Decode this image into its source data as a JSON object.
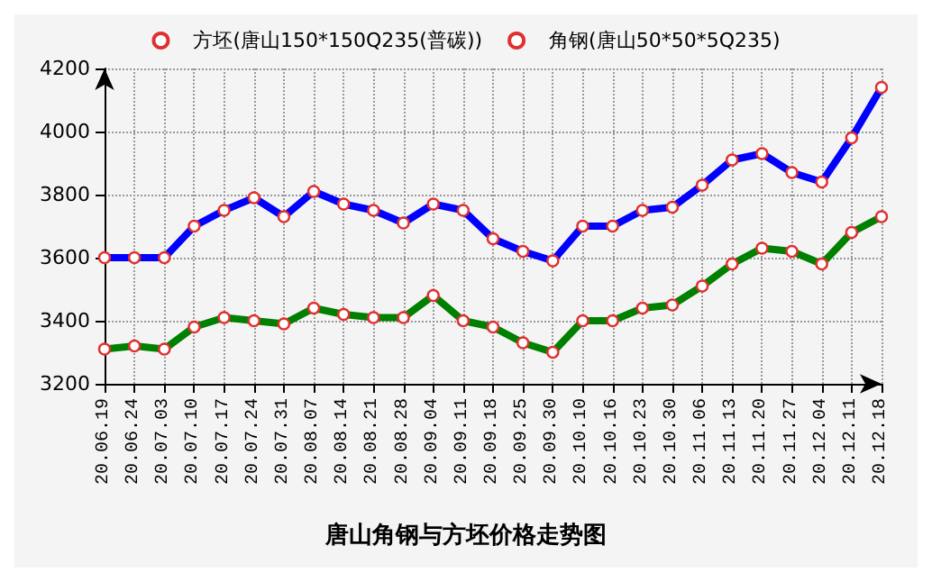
{
  "chart_data": {
    "type": "line",
    "title": "唐山角钢与方坯价格走势图",
    "categories": [
      "20.06.19",
      "20.06.24",
      "20.07.03",
      "20.07.10",
      "20.07.17",
      "20.07.24",
      "20.07.31",
      "20.08.07",
      "20.08.14",
      "20.08.21",
      "20.08.28",
      "20.09.04",
      "20.09.11",
      "20.09.18",
      "20.09.25",
      "20.09.30",
      "20.10.10",
      "20.10.16",
      "20.10.23",
      "20.10.30",
      "20.11.06",
      "20.11.13",
      "20.11.20",
      "20.11.27",
      "20.12.04",
      "20.12.11",
      "20.12.18"
    ],
    "series": [
      {
        "name": "方坯(唐山150*150Q235(普碳))",
        "color": "#008000",
        "values": [
          3310,
          3320,
          3310,
          3380,
          3410,
          3400,
          3390,
          3440,
          3420,
          3410,
          3410,
          3480,
          3400,
          3380,
          3330,
          3300,
          3400,
          3400,
          3440,
          3450,
          3510,
          3580,
          3630,
          3620,
          3580,
          3680,
          3730
        ]
      },
      {
        "name": "角钢(唐山50*50*5Q235)",
        "color": "#0000ff",
        "values": [
          3600,
          3600,
          3600,
          3700,
          3750,
          3790,
          3730,
          3810,
          3770,
          3750,
          3710,
          3770,
          3750,
          3660,
          3620,
          3590,
          3700,
          3700,
          3750,
          3760,
          3830,
          3910,
          3930,
          3870,
          3840,
          3980,
          4140
        ]
      }
    ],
    "ylim": [
      3200,
      4200
    ],
    "yticks": [
      3200,
      3400,
      3600,
      3800,
      4000,
      4200
    ],
    "grid": true,
    "legend": "top",
    "marker": "circle",
    "line_style": "solid"
  }
}
